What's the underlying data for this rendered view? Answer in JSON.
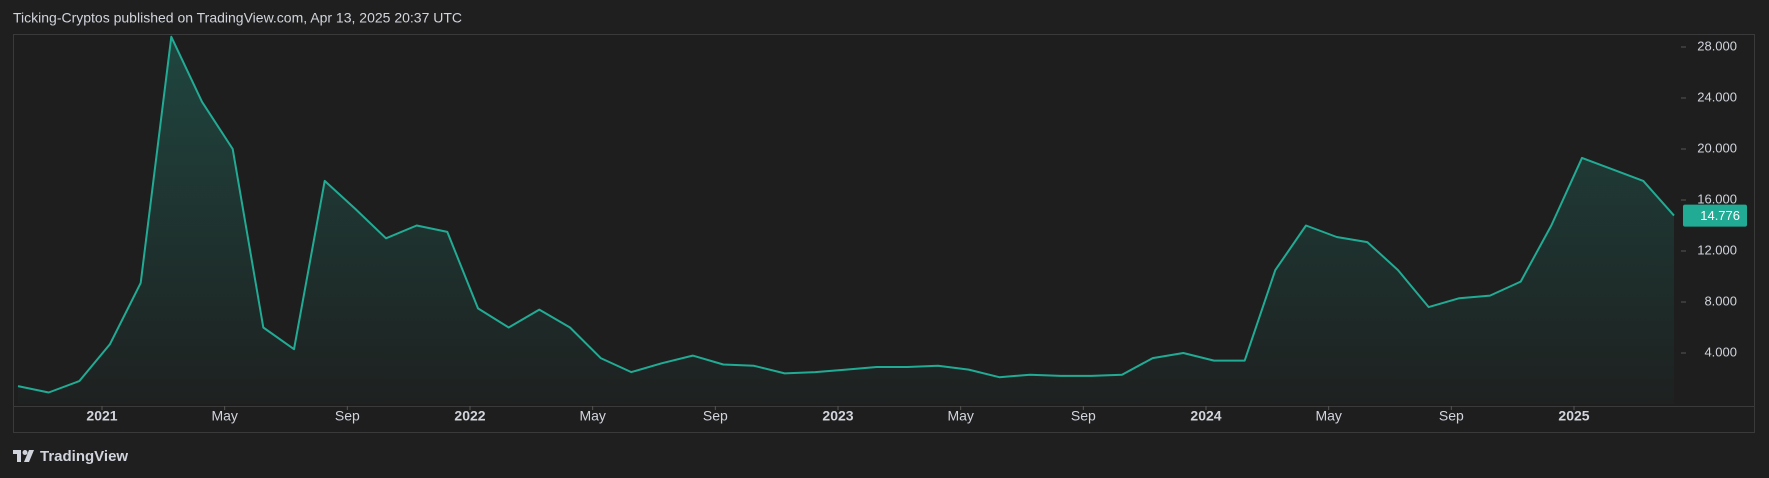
{
  "chart_data": {
    "type": "area",
    "title": "Ticking-Cryptos published on TradingView.com, Apr 13, 2025 20:37 UTC",
    "color": "#22ab94",
    "x": [
      "2020-10",
      "2020-11",
      "2020-12",
      "2021-01",
      "2021-02",
      "2021-03",
      "2021-04",
      "2021-05",
      "2021-06",
      "2021-07",
      "2021-08",
      "2021-09",
      "2021-10",
      "2021-11",
      "2021-12",
      "2022-01",
      "2022-02",
      "2022-03",
      "2022-04",
      "2022-05",
      "2022-06",
      "2022-07",
      "2022-08",
      "2022-09",
      "2022-10",
      "2022-11",
      "2022-12",
      "2023-01",
      "2023-02",
      "2023-03",
      "2023-04",
      "2023-05",
      "2023-06",
      "2023-07",
      "2023-08",
      "2023-09",
      "2023-10",
      "2023-11",
      "2023-12",
      "2024-01",
      "2024-02",
      "2024-03",
      "2024-04",
      "2024-05",
      "2024-06",
      "2024-07",
      "2024-08",
      "2024-09",
      "2024-10",
      "2024-11",
      "2024-12",
      "2025-01",
      "2025-02",
      "2025-03",
      "2025-04"
    ],
    "values": [
      1400,
      900,
      1800,
      4700,
      9500,
      28800,
      23700,
      20000,
      6000,
      4300,
      17500,
      15300,
      13000,
      14000,
      13500,
      7500,
      6000,
      7400,
      6000,
      3600,
      2500,
      3200,
      3800,
      3100,
      3000,
      2400,
      2500,
      2700,
      2900,
      2900,
      3000,
      2700,
      2100,
      2300,
      2200,
      2200,
      2300,
      3600,
      4000,
      3400,
      3400,
      10500,
      14000,
      13100,
      12700,
      10500,
      7600,
      8300,
      8500,
      9600,
      14000,
      19300,
      18400,
      17500,
      14776
    ],
    "xlim": [
      "2020-10",
      "2025-04"
    ],
    "xticks": [
      {
        "value": "2021-01",
        "label": "2021"
      },
      {
        "value": "2021-05",
        "label": "May"
      },
      {
        "value": "2021-09",
        "label": "Sep"
      },
      {
        "value": "2022-01",
        "label": "2022"
      },
      {
        "value": "2022-05",
        "label": "May"
      },
      {
        "value": "2022-09",
        "label": "Sep"
      },
      {
        "value": "2023-01",
        "label": "2023"
      },
      {
        "value": "2023-05",
        "label": "May"
      },
      {
        "value": "2023-09",
        "label": "Sep"
      },
      {
        "value": "2024-01",
        "label": "2024"
      },
      {
        "value": "2024-05",
        "label": "May"
      },
      {
        "value": "2024-09",
        "label": "Sep"
      },
      {
        "value": "2025-01",
        "label": "2025"
      }
    ],
    "ylim": [
      0,
      28000
    ],
    "yticks": [
      {
        "value": 4000,
        "label": "4.000"
      },
      {
        "value": 8000,
        "label": "8.000"
      },
      {
        "value": 12000,
        "label": "12.000"
      },
      {
        "value": 16000,
        "label": "16.000"
      },
      {
        "value": 20000,
        "label": "20.000"
      },
      {
        "value": 24000,
        "label": "24.000"
      },
      {
        "value": 28000,
        "label": "28.000"
      }
    ],
    "last_price": {
      "value": 14776,
      "label": "14.776"
    }
  },
  "footer": "TradingView"
}
